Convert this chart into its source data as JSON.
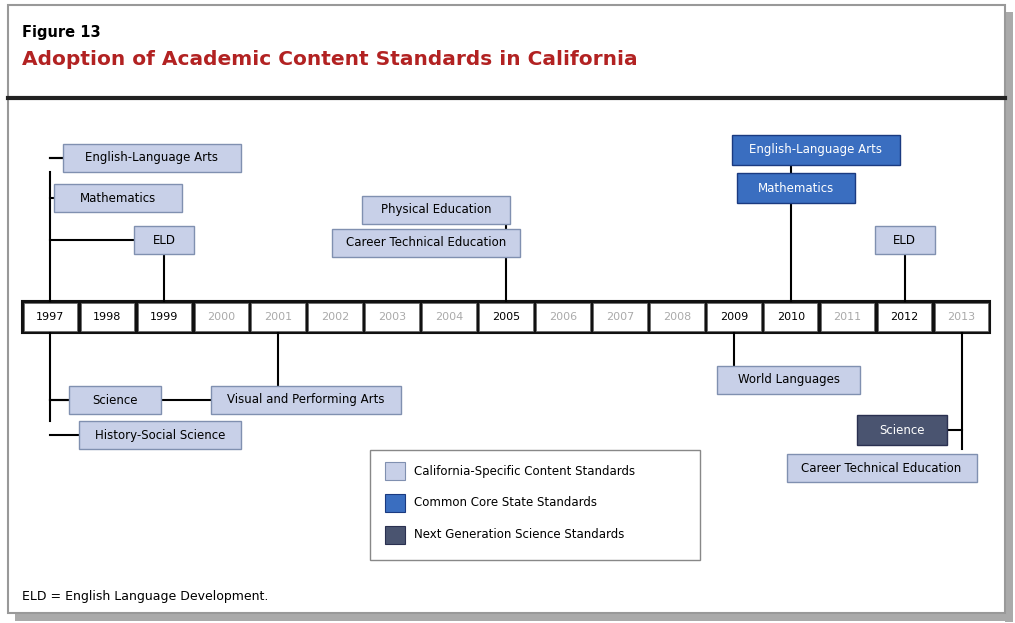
{
  "figure_label": "Figure 13",
  "title": "Adoption of Academic Content Standards in California",
  "title_color": "#b22222",
  "years": [
    "1997",
    "1998",
    "1999",
    "2000",
    "2001",
    "2002",
    "2003",
    "2004",
    "2005",
    "2006",
    "2007",
    "2008",
    "2009",
    "2010",
    "2011",
    "2012",
    "2013"
  ],
  "active_years": [
    "1997",
    "1998",
    "1999",
    "2005",
    "2009",
    "2010",
    "2012"
  ],
  "color_ca": "#c8d0e8",
  "color_ccss": "#3a6ec0",
  "color_ngss": "#4a5470",
  "edge_ca": "#8090b0",
  "edge_ccss": "#1a3a80",
  "edge_ngss": "#2a3050",
  "legend_items": [
    {
      "label": "California-Specific Content Standards",
      "color": "#c8d0e8",
      "edge": "#8090b0"
    },
    {
      "label": "Common Core State Standards",
      "color": "#3a6ec0",
      "edge": "#1a3a80"
    },
    {
      "label": "Next Generation Science Standards",
      "color": "#4a5470",
      "edge": "#2a3050"
    }
  ],
  "footnote": "ELD = English Language Development.",
  "bg": "#ffffff",
  "border_color": "#999999"
}
